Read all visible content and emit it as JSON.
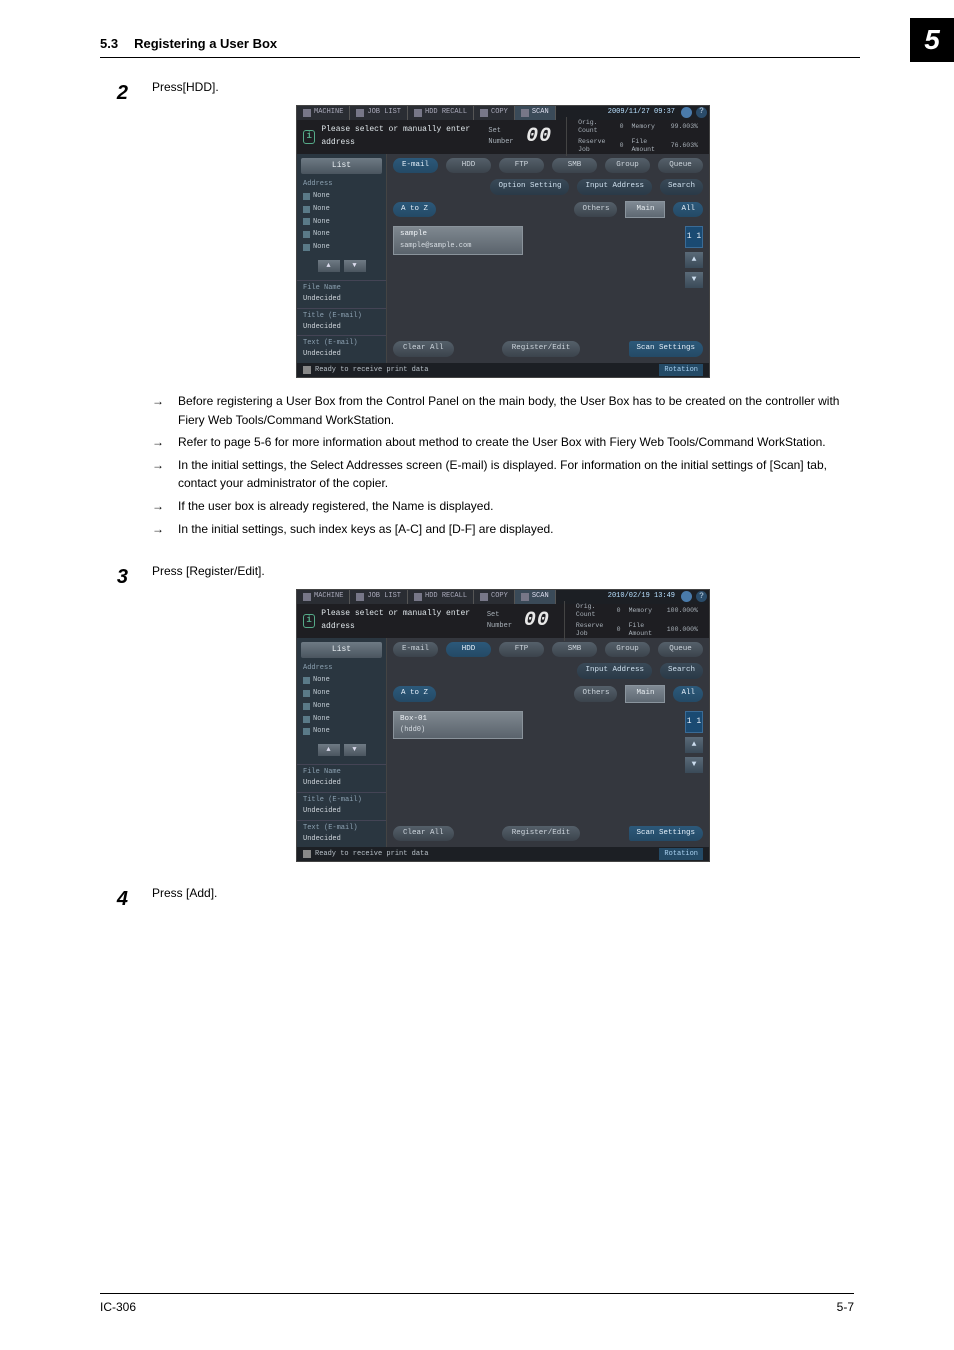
{
  "header": {
    "section_no": "5.3",
    "section_title": "Registering a User Box",
    "chapter_badge": "5"
  },
  "footer": {
    "left": "IC-306",
    "right": "5-7"
  },
  "step2": {
    "num": "2",
    "instruction": "Press[HDD].",
    "bullets": [
      "Before registering a User Box from the Control Panel on the main body, the User Box has to be created on the controller with Fiery Web Tools/Command WorkStation.",
      "Refer to page 5-6 for more information about method to create the User Box with Fiery Web Tools/Command WorkStation.",
      "In the initial settings, the Select Addresses screen (E-mail) is displayed.  For information on the initial settings of [Scan] tab, contact your administrator of the copier.",
      "If the user box is already registered, the Name is displayed.",
      "In the initial settings, such index keys as [A-C] and [D-F] are displayed."
    ],
    "shot": {
      "timestamp": "2009/11/27 09:37",
      "tabs": [
        "MACHINE",
        "JOB LIST",
        "HDD RECALL",
        "COPY",
        "SCAN"
      ],
      "active_tab_index": 4,
      "prompt": "Please select or manually enter address",
      "set_number_label": "Set Number",
      "set_number_value": "00",
      "stats": {
        "orig_count_l": "Orig. Count",
        "orig_count_v": "0",
        "reserve_l": "Reserve Job",
        "reserve_v": "0",
        "memory_l": "Memory",
        "memory_v": "99.003%",
        "file_l": "File Amount",
        "file_v": "76.603%"
      },
      "left": {
        "list_btn": "List",
        "address_label": "Address",
        "rows": [
          "None",
          "None",
          "None",
          "None",
          "None"
        ],
        "file_name_l": "File Name",
        "file_name_v": "Undecided",
        "title_l": "Title (E-mail)",
        "title_v": "Undecided",
        "text_l": "Text (E-mail)",
        "text_v": "Undecided"
      },
      "main_tabs": [
        "E-mail",
        "HDD",
        "FTP",
        "SMB",
        "Group",
        "Queue"
      ],
      "main_active_tab_index": 0,
      "right_ops": [
        "Option Setting",
        "Input Address",
        "Search"
      ],
      "filter": {
        "atoz": "A to Z",
        "others": "Others",
        "main": "Main",
        "all": "All"
      },
      "entry": {
        "name": "sample",
        "addr": "sample@sample.com"
      },
      "counter": "1\n1",
      "clear_all": "Clear All",
      "register_edit": "Register/Edit",
      "scan_settings": "Scan Settings",
      "status": "Ready to receive print data",
      "rotation": "Rotation"
    }
  },
  "step3": {
    "num": "3",
    "instruction": "Press [Register/Edit].",
    "shot": {
      "timestamp": "2010/02/19 13:49",
      "tabs": [
        "MACHINE",
        "JOB LIST",
        "HDD RECALL",
        "COPY",
        "SCAN"
      ],
      "active_tab_index": 4,
      "prompt": "Please select or manually enter address",
      "set_number_label": "Set Number",
      "set_number_value": "00",
      "stats": {
        "orig_count_l": "Orig. Count",
        "orig_count_v": "0",
        "reserve_l": "Reserve Job",
        "reserve_v": "0",
        "memory_l": "Memory",
        "memory_v": "100.000%",
        "file_l": "File Amount",
        "file_v": "100.000%"
      },
      "left": {
        "list_btn": "List",
        "address_label": "Address",
        "rows": [
          "None",
          "None",
          "None",
          "None",
          "None"
        ],
        "file_name_l": "File Name",
        "file_name_v": "Undecided",
        "title_l": "Title (E-mail)",
        "title_v": "Undecided",
        "text_l": "Text (E-mail)",
        "text_v": "Undecided"
      },
      "main_tabs": [
        "E-mail",
        "HDD",
        "FTP",
        "SMB",
        "Group",
        "Queue"
      ],
      "main_active_tab_index": 1,
      "right_ops": [
        "Input Address",
        "Search"
      ],
      "filter": {
        "atoz": "A to Z",
        "others": "Others",
        "main": "Main",
        "all": "All"
      },
      "entry": {
        "name": "Box-01",
        "addr": "(hdd0)"
      },
      "counter": "1\n1",
      "clear_all": "Clear All",
      "register_edit": "Register/Edit",
      "scan_settings": "Scan Settings",
      "status": "Ready to receive print data",
      "rotation": "Rotation"
    }
  },
  "step4": {
    "num": "4",
    "instruction": "Press [Add]."
  }
}
